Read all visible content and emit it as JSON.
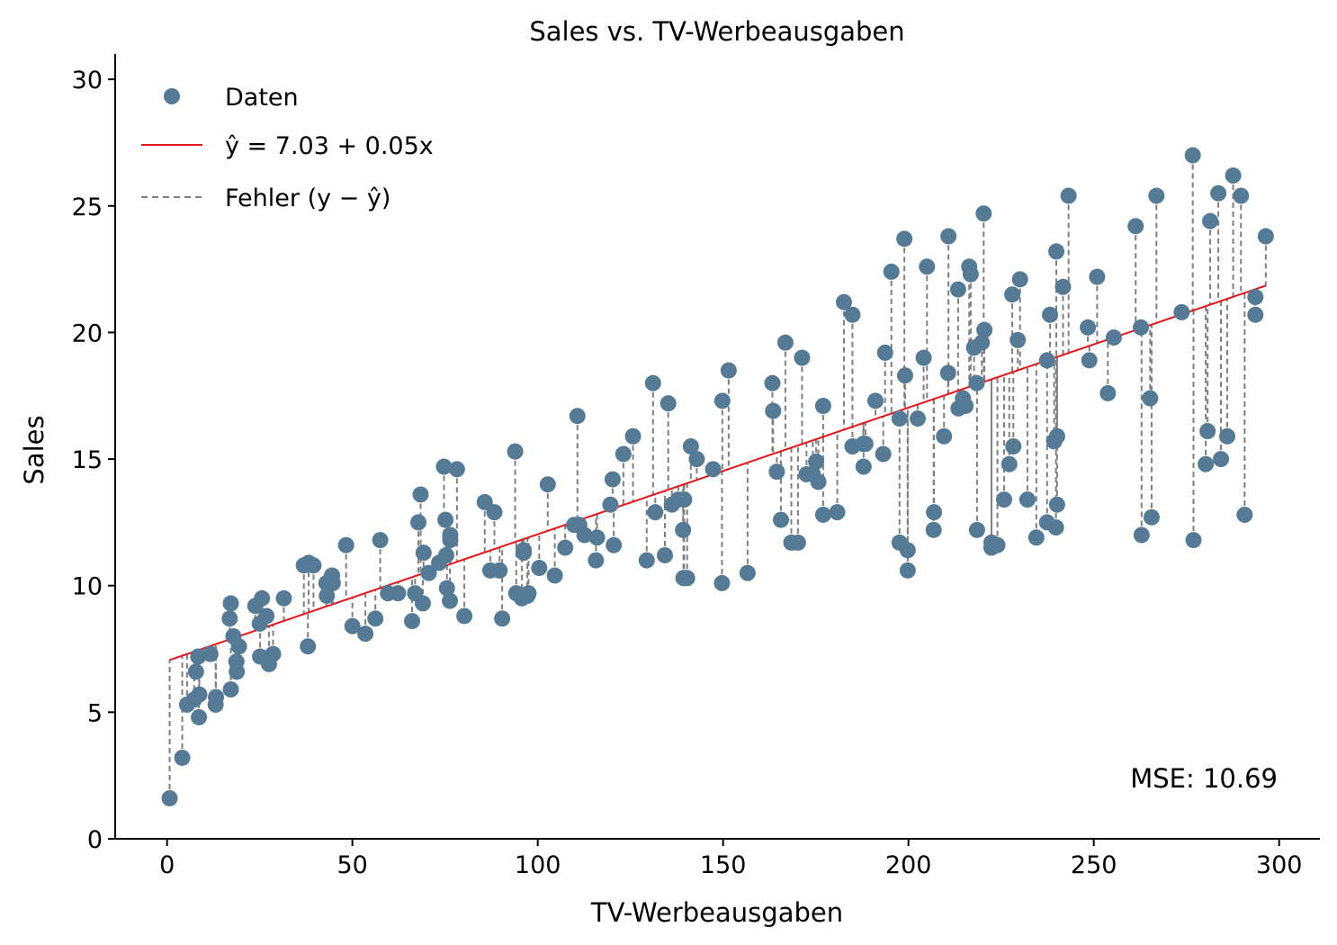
{
  "chart_data": {
    "type": "scatter",
    "title": "Sales vs. TV-Werbeausgaben",
    "xlabel": "TV-Werbeausgaben",
    "ylabel": "Sales",
    "xlim": [
      -14,
      311
    ],
    "ylim": [
      0,
      31
    ],
    "xticks": [
      0,
      50,
      100,
      150,
      200,
      250,
      300
    ],
    "yticks": [
      0,
      5,
      10,
      15,
      20,
      25,
      30
    ],
    "grid": false,
    "legend_position": "top-left",
    "legend": {
      "points": "Daten",
      "line": "ŷ =  7.03 + 0.05x",
      "errors": "Fehler (y − ŷ)"
    },
    "regression": {
      "intercept": 7.03,
      "slope": 0.05,
      "x_range": [
        0.7,
        296.4
      ]
    },
    "annotation": "MSE: 10.69",
    "colors": {
      "points": "#557a95",
      "line": "#e8141a",
      "errors": "#7f7f7f"
    },
    "series": [
      {
        "name": "Daten",
        "points": [
          [
            0.7,
            1.6
          ],
          [
            4.1,
            3.2
          ],
          [
            5.4,
            5.3
          ],
          [
            7.3,
            5.5
          ],
          [
            7.8,
            6.6
          ],
          [
            8.4,
            7.2
          ],
          [
            8.6,
            4.8
          ],
          [
            8.7,
            5.7
          ],
          [
            11.7,
            7.3
          ],
          [
            13.1,
            5.3
          ],
          [
            13.2,
            5.6
          ],
          [
            16.9,
            8.7
          ],
          [
            17.2,
            9.3
          ],
          [
            17.2,
            5.9
          ],
          [
            17.9,
            8.0
          ],
          [
            18.7,
            7.0
          ],
          [
            18.8,
            6.6
          ],
          [
            19.4,
            7.6
          ],
          [
            23.8,
            9.2
          ],
          [
            25.0,
            8.5
          ],
          [
            25.1,
            7.2
          ],
          [
            25.6,
            9.5
          ],
          [
            26.8,
            8.8
          ],
          [
            27.5,
            6.9
          ],
          [
            28.6,
            7.3
          ],
          [
            31.5,
            9.5
          ],
          [
            36.9,
            10.8
          ],
          [
            38.0,
            7.6
          ],
          [
            38.2,
            10.9
          ],
          [
            39.5,
            10.8
          ],
          [
            43.0,
            10.1
          ],
          [
            43.1,
            9.6
          ],
          [
            44.5,
            10.4
          ],
          [
            44.7,
            10.1
          ],
          [
            48.3,
            11.6
          ],
          [
            50.0,
            8.4
          ],
          [
            53.5,
            8.1
          ],
          [
            56.2,
            8.7
          ],
          [
            57.5,
            11.8
          ],
          [
            59.6,
            9.7
          ],
          [
            62.3,
            9.7
          ],
          [
            66.1,
            8.6
          ],
          [
            66.9,
            9.7
          ],
          [
            67.8,
            12.5
          ],
          [
            68.4,
            13.6
          ],
          [
            69.0,
            9.3
          ],
          [
            69.2,
            11.3
          ],
          [
            70.6,
            10.5
          ],
          [
            73.4,
            10.9
          ],
          [
            74.7,
            14.7
          ],
          [
            75.1,
            12.6
          ],
          [
            75.3,
            11.2
          ],
          [
            75.5,
            9.9
          ],
          [
            76.3,
            9.4
          ],
          [
            76.4,
            11.8
          ],
          [
            76.4,
            12.0
          ],
          [
            78.2,
            14.6
          ],
          [
            80.2,
            8.8
          ],
          [
            85.7,
            13.3
          ],
          [
            87.2,
            10.6
          ],
          [
            88.3,
            12.9
          ],
          [
            89.7,
            10.6
          ],
          [
            90.4,
            8.7
          ],
          [
            93.9,
            15.3
          ],
          [
            94.2,
            9.7
          ],
          [
            95.7,
            9.5
          ],
          [
            96.2,
            11.4
          ],
          [
            96.2,
            11.3
          ],
          [
            97.2,
            9.6
          ],
          [
            97.5,
            9.7
          ],
          [
            100.4,
            10.7
          ],
          [
            102.7,
            14.0
          ],
          [
            104.6,
            10.4
          ],
          [
            107.4,
            11.5
          ],
          [
            109.8,
            12.4
          ],
          [
            110.7,
            16.7
          ],
          [
            110.7,
            12.4
          ],
          [
            111.2,
            12.4
          ],
          [
            112.6,
            12.0
          ],
          [
            115.7,
            11.0
          ],
          [
            116.0,
            11.9
          ],
          [
            119.6,
            13.2
          ],
          [
            120.2,
            14.2
          ],
          [
            120.5,
            11.6
          ],
          [
            123.1,
            15.2
          ],
          [
            125.7,
            15.9
          ],
          [
            129.4,
            11.0
          ],
          [
            131.1,
            18.0
          ],
          [
            131.7,
            12.9
          ],
          [
            134.3,
            11.2
          ],
          [
            135.2,
            17.2
          ],
          [
            136.2,
            13.2
          ],
          [
            137.9,
            13.4
          ],
          [
            139.2,
            12.2
          ],
          [
            139.3,
            10.3
          ],
          [
            139.5,
            10.3
          ],
          [
            139.5,
            13.4
          ],
          [
            140.3,
            10.3
          ],
          [
            141.3,
            15.5
          ],
          [
            142.9,
            15.0
          ],
          [
            147.3,
            14.6
          ],
          [
            149.7,
            10.1
          ],
          [
            149.8,
            17.3
          ],
          [
            151.5,
            18.5
          ],
          [
            156.6,
            10.5
          ],
          [
            163.3,
            18.0
          ],
          [
            163.5,
            16.9
          ],
          [
            164.5,
            14.5
          ],
          [
            165.6,
            12.6
          ],
          [
            166.8,
            19.6
          ],
          [
            168.4,
            11.7
          ],
          [
            170.2,
            11.7
          ],
          [
            171.3,
            19.0
          ],
          [
            172.5,
            14.4
          ],
          [
            174.2,
            14.4
          ],
          [
            175.1,
            14.9
          ],
          [
            175.7,
            14.1
          ],
          [
            177.0,
            17.1
          ],
          [
            177.0,
            12.8
          ],
          [
            180.8,
            12.9
          ],
          [
            182.6,
            21.2
          ],
          [
            184.9,
            15.5
          ],
          [
            184.9,
            20.7
          ],
          [
            187.8,
            15.6
          ],
          [
            187.9,
            14.7
          ],
          [
            188.4,
            15.6
          ],
          [
            191.1,
            17.3
          ],
          [
            193.2,
            15.2
          ],
          [
            193.7,
            19.2
          ],
          [
            195.4,
            22.4
          ],
          [
            197.6,
            11.7
          ],
          [
            197.6,
            16.6
          ],
          [
            198.9,
            23.7
          ],
          [
            199.1,
            18.3
          ],
          [
            199.8,
            11.4
          ],
          [
            199.8,
            10.6
          ],
          [
            202.5,
            16.6
          ],
          [
            204.1,
            19.0
          ],
          [
            205.0,
            22.6
          ],
          [
            206.8,
            12.2
          ],
          [
            206.9,
            12.9
          ],
          [
            209.6,
            15.9
          ],
          [
            210.7,
            18.4
          ],
          [
            210.8,
            23.8
          ],
          [
            213.4,
            21.7
          ],
          [
            213.5,
            17.0
          ],
          [
            214.7,
            17.4
          ],
          [
            215.4,
            17.1
          ],
          [
            216.4,
            22.6
          ],
          [
            216.8,
            22.3
          ],
          [
            217.7,
            19.4
          ],
          [
            218.4,
            18.0
          ],
          [
            218.5,
            12.2
          ],
          [
            219.8,
            19.6
          ],
          [
            220.3,
            24.7
          ],
          [
            220.5,
            20.1
          ],
          [
            222.4,
            11.7
          ],
          [
            222.4,
            11.5
          ],
          [
            224.0,
            11.6
          ],
          [
            225.8,
            13.4
          ],
          [
            227.2,
            14.8
          ],
          [
            228.0,
            21.5
          ],
          [
            228.3,
            15.5
          ],
          [
            229.5,
            19.7
          ],
          [
            230.1,
            22.1
          ],
          [
            232.1,
            13.4
          ],
          [
            234.5,
            11.9
          ],
          [
            237.4,
            18.9
          ],
          [
            237.4,
            12.5
          ],
          [
            238.2,
            20.7
          ],
          [
            239.3,
            15.7
          ],
          [
            239.8,
            12.3
          ],
          [
            239.9,
            23.2
          ],
          [
            240.1,
            13.2
          ],
          [
            240.1,
            15.9
          ],
          [
            241.7,
            21.8
          ],
          [
            243.2,
            25.4
          ],
          [
            248.4,
            20.2
          ],
          [
            248.8,
            18.9
          ],
          [
            250.9,
            22.2
          ],
          [
            253.8,
            17.6
          ],
          [
            255.4,
            19.8
          ],
          [
            261.3,
            24.2
          ],
          [
            262.7,
            20.2
          ],
          [
            262.9,
            12.0
          ],
          [
            265.2,
            17.4
          ],
          [
            265.6,
            12.7
          ],
          [
            266.9,
            25.4
          ],
          [
            273.7,
            20.8
          ],
          [
            276.7,
            27.0
          ],
          [
            276.9,
            11.8
          ],
          [
            280.2,
            14.8
          ],
          [
            280.7,
            16.1
          ],
          [
            281.4,
            24.4
          ],
          [
            283.6,
            25.5
          ],
          [
            284.3,
            15.0
          ],
          [
            286.0,
            15.9
          ],
          [
            287.6,
            26.2
          ],
          [
            289.7,
            25.4
          ],
          [
            290.7,
            12.8
          ],
          [
            293.6,
            21.4
          ],
          [
            293.6,
            20.7
          ],
          [
            296.4,
            23.8
          ]
        ]
      }
    ]
  }
}
